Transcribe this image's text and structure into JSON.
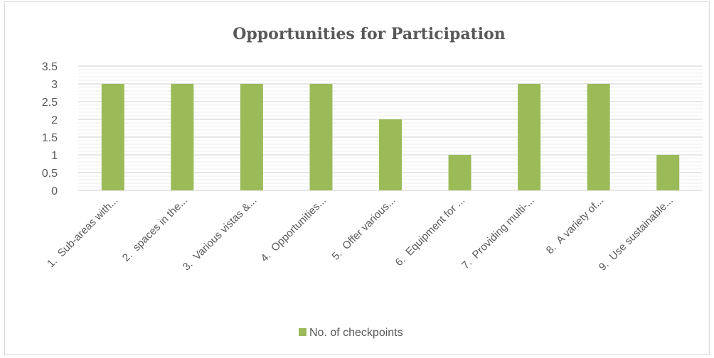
{
  "chart_data": {
    "type": "bar",
    "title": "Opportunities for Participation",
    "categories": [
      "1.  Sub-areas with...",
      "2.  spaces in the...",
      "3.  Various vistas &...",
      "4.  Opportunities...",
      "5.  Offer various...",
      "6.  Equipment for ...",
      "7.  Providing multi-...",
      "8.  A variety of...",
      "9.  Use sustainable..."
    ],
    "series": [
      {
        "name": "No. of checkpoints",
        "values": [
          3,
          3,
          3,
          3,
          2,
          1,
          3,
          3,
          1
        ]
      }
    ],
    "yticks": [
      "0",
      "0.5",
      "1",
      "1.5",
      "2",
      "2.5",
      "3",
      "3.5"
    ],
    "ylim": [
      0,
      3.5
    ],
    "xlabel": "",
    "ylabel": "",
    "grid": true,
    "legend_position": "bottom",
    "bar_color": "#9bbb59",
    "gridline_color": "#d9d9d9"
  }
}
